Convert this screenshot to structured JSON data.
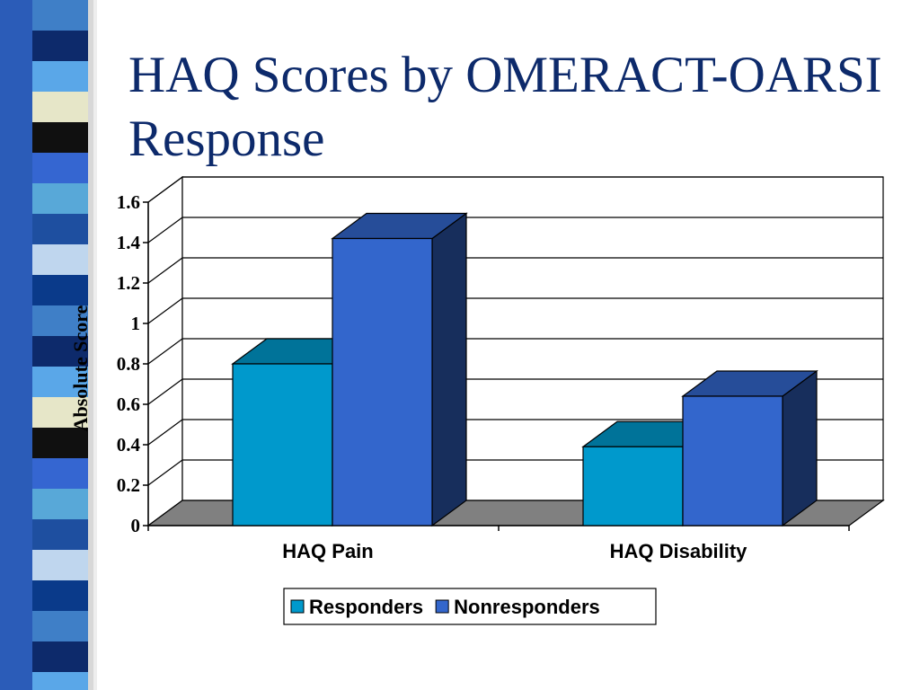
{
  "slide": {
    "title": "HAQ Scores by OMERACT-OARSI Response"
  },
  "colors": {
    "title": "#0d2a6b",
    "strip": [
      "#3f7fc7",
      "#0d2a6b",
      "#5aa7e8",
      "#e6e6c8",
      "#101010",
      "#3566d1",
      "#58a8d8",
      "#1e4fa0",
      "#bfd6ee",
      "#0a3a8a"
    ]
  },
  "chart_data": {
    "type": "bar",
    "style": "3d-clustered",
    "title": "",
    "xlabel": "",
    "ylabel": "Absolute Score",
    "categories": [
      "HAQ Pain",
      "HAQ Disability"
    ],
    "series": [
      {
        "name": "Responders",
        "values": [
          0.8,
          0.39
        ],
        "color": "#0099cc"
      },
      {
        "name": "Nonresponders",
        "values": [
          1.42,
          0.64
        ],
        "color": "#3366cc"
      }
    ],
    "ylim": [
      0,
      1.6
    ],
    "yticks": [
      "0",
      "0.2",
      "0.4",
      "0.6",
      "0.8",
      "1",
      "1.2",
      "1.4",
      "1.6"
    ],
    "grid": true,
    "legend": "bottom"
  }
}
